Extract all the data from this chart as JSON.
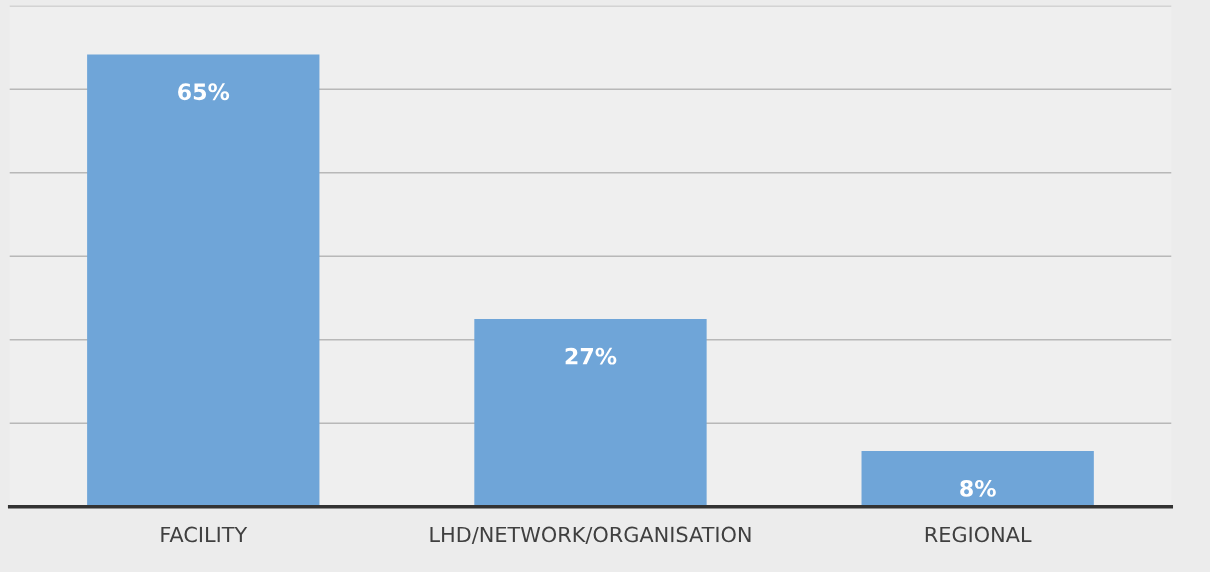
{
  "chart_data": {
    "type": "bar",
    "categories": [
      "FACILITY",
      "LHD/NETWORK/ORGANISATION",
      "REGIONAL"
    ],
    "values": [
      65,
      27,
      8
    ],
    "value_labels": [
      "65%",
      "27%",
      "8%"
    ],
    "color": "#6fa5d8",
    "ylim": [
      0,
      72
    ],
    "yticks": [
      {
        "value": 12,
        "label": null
      },
      {
        "value": 24,
        "label": null
      },
      {
        "value": 36,
        "label": null
      },
      {
        "value": 48,
        "label": null
      },
      {
        "value": 60,
        "label": null
      },
      {
        "value": 72,
        "label": null
      }
    ],
    "grid": "y",
    "legend": false
  }
}
